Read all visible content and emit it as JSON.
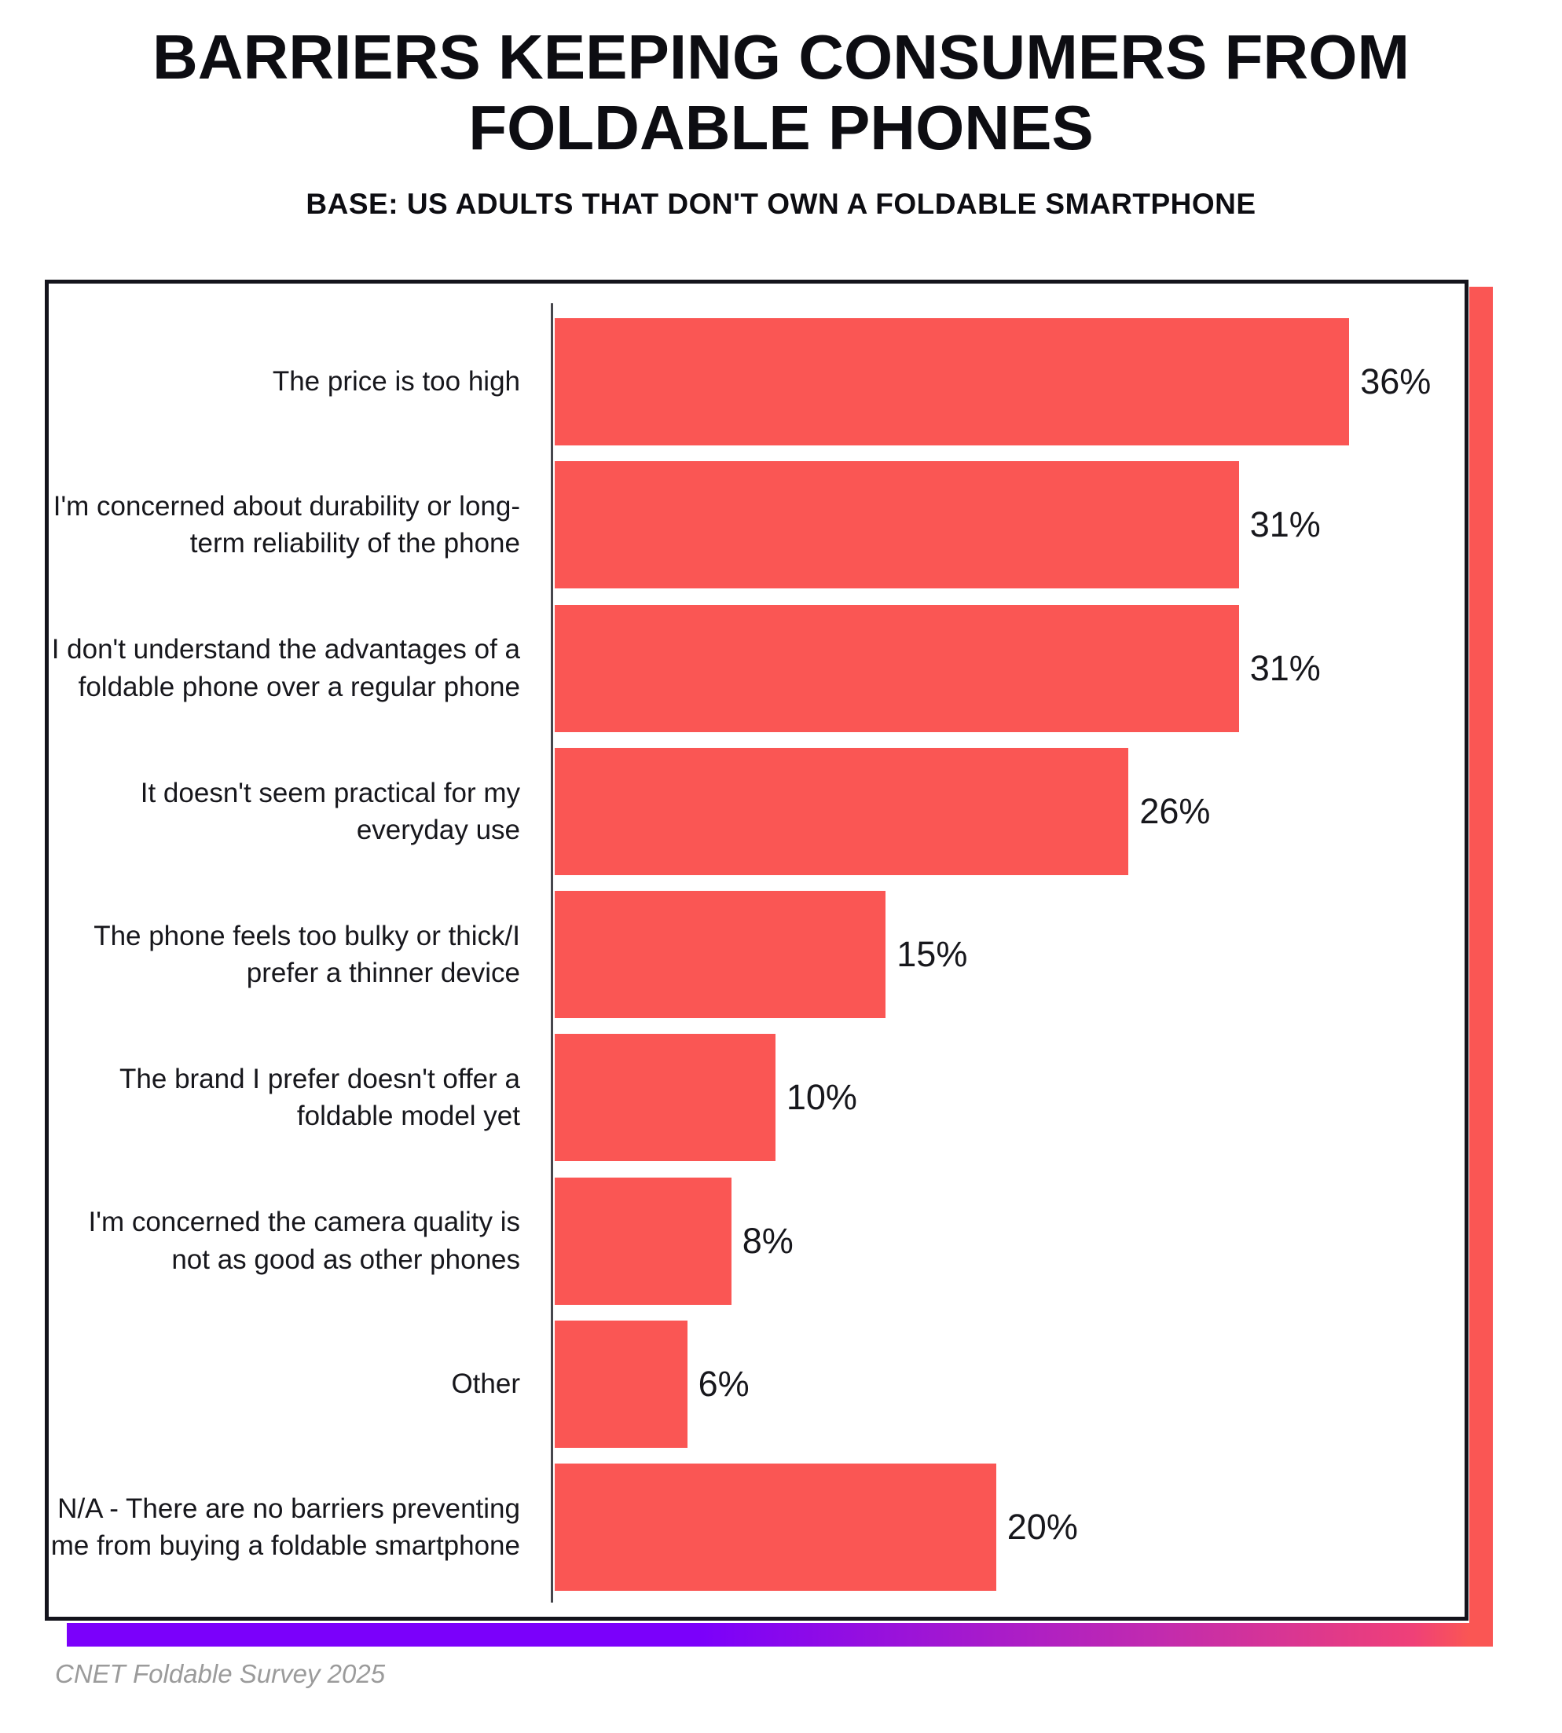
{
  "title": "BARRIERS KEEPING CONSUMERS FROM FOLDABLE PHONES",
  "subtitle": "BASE: US ADULTS THAT DON'T OWN A FOLDABLE SMARTPHONE",
  "footer": "CNET  Foldable Survey 2025",
  "colors": {
    "bar": "#FA5654",
    "shadow_right": "#FA5654",
    "gradient_left": "#7B00FB",
    "gradient_mid": "#C22BAE",
    "gradient_right": "#EF4078",
    "border": "#14141C",
    "axis": "#46464C",
    "ink": "#0D0D12",
    "label_text": "#17171C",
    "footer_text": "#9B9B9B"
  },
  "chart_data": {
    "type": "bar",
    "orientation": "horizontal",
    "title": "BARRIERS KEEPING CONSUMERS FROM FOLDABLE PHONES",
    "subtitle": "BASE: US ADULTS THAT DON'T OWN A FOLDABLE SMARTPHONE",
    "categories": [
      "The price is too high",
      "I'm concerned about durability or long-term reliability of the phone",
      "I don't understand the advantages of a foldable phone over a regular phone",
      "It doesn't seem practical for my everyday use",
      "The phone feels too bulky or thick/I prefer a thinner device",
      "The brand I prefer doesn't offer a foldable model yet",
      "I'm concerned the camera quality is not as good as other phones",
      "Other",
      "N/A - There are no barriers preventing me from buying a foldable smartphone"
    ],
    "values": [
      36,
      31,
      31,
      26,
      15,
      10,
      8,
      6,
      20
    ],
    "value_suffix": "%",
    "xlabel": "",
    "ylabel": "",
    "xlim": [
      0,
      40.8
    ],
    "grid": false,
    "legend": false,
    "bar_color": "#FA5654",
    "value_labels_position": "right-of-bar",
    "source": "CNET  Foldable Survey 2025"
  }
}
